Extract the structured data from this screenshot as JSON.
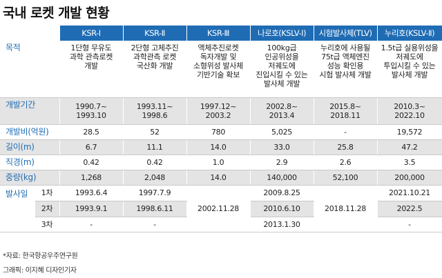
{
  "title": "국내 로켓 개발 현황",
  "columns": [
    "KSR-Ⅰ",
    "KSR-Ⅱ",
    "KSR-Ⅲ",
    "나로호(KSLV-Ⅰ)",
    "시험발사체(TLV)",
    "누리호(KSLV-Ⅱ)"
  ],
  "rows": {
    "purpose": {
      "label": "목적",
      "values": [
        [
          "1단형 무유도",
          "과학 관측로켓",
          "개발"
        ],
        [
          "2단형 고체추진",
          "과학관측 로켓",
          "국산화 개발"
        ],
        [
          "액체추진로켓",
          "독자개발 및",
          "소형위성 발사체",
          "기반기술 확보"
        ],
        [
          "100kg급",
          "인공위성을",
          "저궤도에",
          "진입시킬 수 있는",
          "발사체 개발"
        ],
        [
          "누리호에 사용될",
          "75t급 액체엔진",
          "성능 확인용",
          "시험 발사체 개발"
        ],
        [
          "1.5t급 실용위성을",
          "저궤도에",
          "투입시킬 수 있는",
          "발사체 개발"
        ]
      ]
    },
    "period": {
      "label": "개발기간",
      "values": [
        [
          "1990.7~",
          "1993.10"
        ],
        [
          "1993.11~",
          "1998.6"
        ],
        [
          "1997.12~",
          "2003.2"
        ],
        [
          "2002.8~",
          "2013.4"
        ],
        [
          "2015.8~",
          "2018.11"
        ],
        [
          "2010.3~",
          "2022.10"
        ]
      ]
    },
    "cost": {
      "label": "개발비(억원)",
      "values": [
        "28.5",
        "52",
        "780",
        "5,025",
        "-",
        "19,572"
      ]
    },
    "length": {
      "label": "길이(m)",
      "values": [
        "6.7",
        "11.1",
        "14.0",
        "33.0",
        "25.8",
        "47.2"
      ]
    },
    "diameter": {
      "label": "직경(m)",
      "values": [
        "0.42",
        "0.42",
        "1.0",
        "2.9",
        "2.6",
        "3.5"
      ]
    },
    "weight": {
      "label": "중량(kg)",
      "values": [
        "1,268",
        "2,048",
        "14.0",
        "140,000",
        "52,100",
        "200,000"
      ]
    },
    "launch": {
      "label": "발사일",
      "sub_labels": [
        "1차",
        "2차",
        "3차"
      ],
      "ksr1": [
        "1993.6.4",
        "1993.9.1",
        "-"
      ],
      "ksr2": [
        "1997.7.9",
        "1998.6.11",
        "-"
      ],
      "ksr3": "2002.11.28",
      "naro": [
        "2009.8.25",
        "2010.6.10",
        "2013.1.30"
      ],
      "tlv": "2018.11.28",
      "nuri": [
        "2021.10.21",
        "2022.5",
        "-"
      ]
    }
  },
  "source": "*자료: 한국항공우주연구원",
  "credit": "그래픽: 이지혜 디자인기자"
}
